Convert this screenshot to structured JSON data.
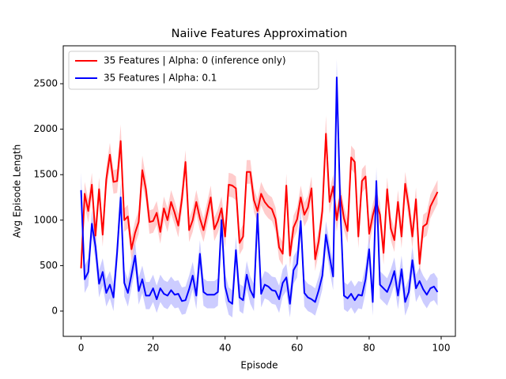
{
  "chart_data": {
    "type": "line",
    "title": "Naiive Features Approximation",
    "xlabel": "Episode",
    "ylabel": "Avg Episode Length",
    "legend": "upper left",
    "band_opacity": 0.2,
    "x": [
      0,
      1,
      2,
      3,
      4,
      5,
      6,
      7,
      8,
      9,
      10,
      11,
      12,
      13,
      14,
      15,
      16,
      17,
      18,
      19,
      20,
      21,
      22,
      23,
      24,
      25,
      26,
      27,
      28,
      29,
      30,
      31,
      32,
      33,
      34,
      35,
      36,
      37,
      38,
      39,
      40,
      41,
      42,
      43,
      44,
      45,
      46,
      47,
      48,
      49,
      50,
      51,
      52,
      53,
      54,
      55,
      56,
      57,
      58,
      59,
      60,
      61,
      62,
      63,
      64,
      65,
      66,
      67,
      68,
      69,
      70,
      71,
      72,
      73,
      74,
      75,
      76,
      77,
      78,
      79,
      80,
      81,
      82,
      83,
      84,
      85,
      86,
      87,
      88,
      89,
      90,
      91,
      92,
      93,
      94,
      95,
      96,
      97,
      98,
      99
    ],
    "series": [
      {
        "name": "35 Features | Alpha: 0 (inference only)",
        "color": "#ff0000",
        "values": [
          470,
          1290,
          1100,
          1390,
          830,
          1340,
          840,
          1450,
          1720,
          1420,
          1430,
          1870,
          1000,
          1040,
          680,
          860,
          980,
          1550,
          1340,
          980,
          990,
          1080,
          870,
          1130,
          1000,
          1200,
          1080,
          940,
          1230,
          1640,
          890,
          1000,
          1200,
          1020,
          890,
          1070,
          1250,
          900,
          990,
          1130,
          820,
          1390,
          1380,
          1350,
          750,
          820,
          1530,
          1530,
          1220,
          1100,
          1290,
          1200,
          1150,
          1120,
          1010,
          700,
          630,
          1380,
          610,
          920,
          1010,
          1250,
          1060,
          1140,
          1350,
          570,
          770,
          1100,
          1950,
          1200,
          1370,
          1000,
          1270,
          1020,
          880,
          1690,
          1640,
          820,
          1430,
          1480,
          850,
          1050,
          1200,
          1060,
          640,
          1340,
          910,
          780,
          1200,
          820,
          1400,
          1150,
          820,
          1230,
          520,
          930,
          960,
          1150,
          1230,
          1310
        ],
        "errors": [
          130,
          130,
          130,
          130,
          130,
          130,
          130,
          130,
          130,
          130,
          130,
          180,
          130,
          130,
          130,
          130,
          130,
          160,
          130,
          130,
          130,
          130,
          130,
          130,
          130,
          130,
          130,
          130,
          130,
          130,
          130,
          130,
          130,
          130,
          130,
          130,
          130,
          130,
          130,
          130,
          130,
          130,
          130,
          130,
          130,
          130,
          130,
          130,
          130,
          130,
          130,
          130,
          130,
          130,
          130,
          130,
          130,
          130,
          130,
          130,
          130,
          130,
          130,
          130,
          130,
          130,
          130,
          130,
          200,
          130,
          130,
          130,
          130,
          130,
          130,
          130,
          130,
          130,
          130,
          130,
          130,
          130,
          130,
          130,
          130,
          130,
          130,
          130,
          130,
          130,
          130,
          130,
          130,
          130,
          130,
          130,
          130,
          130,
          130,
          130
        ]
      },
      {
        "name": "35 Features | Alpha: 0.1",
        "color": "#0000ff",
        "values": [
          1330,
          350,
          430,
          960,
          710,
          300,
          430,
          200,
          290,
          150,
          640,
          1250,
          310,
          200,
          400,
          610,
          220,
          350,
          170,
          170,
          250,
          130,
          250,
          190,
          170,
          230,
          180,
          190,
          110,
          120,
          240,
          390,
          170,
          630,
          210,
          180,
          180,
          180,
          210,
          1000,
          270,
          110,
          80,
          670,
          150,
          120,
          400,
          230,
          150,
          1070,
          190,
          290,
          270,
          230,
          220,
          130,
          310,
          370,
          80,
          450,
          520,
          990,
          200,
          150,
          130,
          100,
          230,
          390,
          840,
          600,
          380,
          2570,
          1130,
          170,
          140,
          190,
          120,
          180,
          170,
          350,
          680,
          100,
          1430,
          290,
          250,
          210,
          310,
          440,
          170,
          460,
          100,
          210,
          560,
          250,
          330,
          240,
          180,
          250,
          270,
          210
        ],
        "errors": [
          200,
          150,
          150,
          150,
          150,
          150,
          150,
          150,
          150,
          150,
          150,
          160,
          150,
          150,
          150,
          150,
          150,
          150,
          150,
          150,
          150,
          150,
          150,
          150,
          150,
          150,
          150,
          150,
          150,
          150,
          150,
          150,
          150,
          150,
          150,
          150,
          150,
          150,
          150,
          150,
          150,
          150,
          150,
          150,
          150,
          150,
          150,
          150,
          150,
          150,
          150,
          150,
          150,
          150,
          150,
          150,
          150,
          150,
          150,
          150,
          150,
          150,
          150,
          150,
          150,
          150,
          150,
          150,
          150,
          150,
          150,
          200,
          150,
          150,
          150,
          150,
          150,
          150,
          150,
          150,
          150,
          150,
          150,
          150,
          150,
          150,
          150,
          150,
          150,
          150,
          150,
          150,
          150,
          150,
          150,
          150,
          150,
          150,
          150,
          150
        ]
      }
    ],
    "xlim": [
      -4.95,
      103.95
    ],
    "xticks": [
      0,
      20,
      40,
      60,
      80,
      100
    ],
    "ylim": [
      -278,
      2917
    ],
    "yticks": [
      0,
      500,
      1000,
      1500,
      2000,
      2500
    ]
  }
}
